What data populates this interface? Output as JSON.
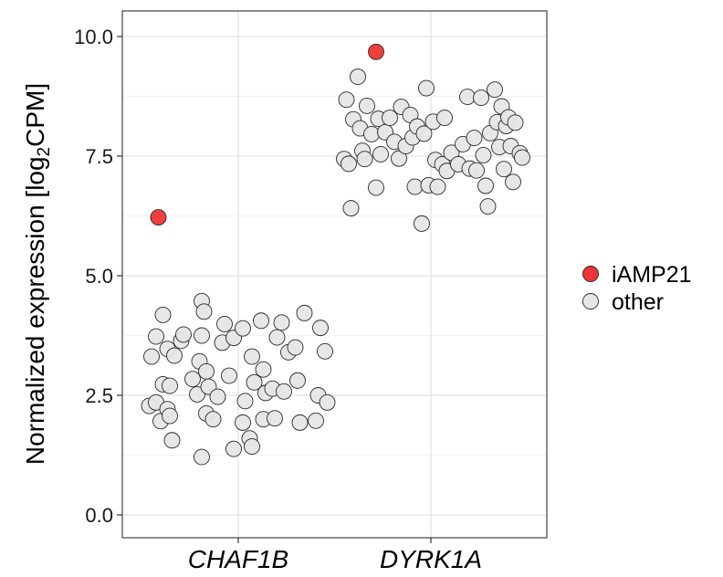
{
  "chart_data": {
    "type": "scatter",
    "style": "jitter",
    "categories": [
      "CHAF1B",
      "DYRK1A"
    ],
    "ylabel": {
      "main": "Normalized expression [log",
      "sub": "2",
      "tail": "CPM]"
    },
    "xlabel": "",
    "ylim": [
      -0.5,
      10.5
    ],
    "yticks": [
      "0.0",
      "2.5",
      "5.0",
      "7.5",
      "10.0"
    ],
    "grid": true,
    "legend_position": "right",
    "series": [
      {
        "name": "iAMP21",
        "color": "#ee3434",
        "points": [
          {
            "category": "CHAF1B",
            "jitter": -0.35,
            "y": 6.22
          },
          {
            "category": "DYRK1A",
            "jitter": -0.24,
            "y": 9.68
          }
        ]
      },
      {
        "name": "other",
        "color": "#e6e6e6",
        "points": [
          {
            "category": "CHAF1B",
            "jitter": -0.39,
            "y": 2.28
          },
          {
            "category": "CHAF1B",
            "jitter": -0.34,
            "y": 1.96
          },
          {
            "category": "CHAF1B",
            "jitter": -0.36,
            "y": 2.35
          },
          {
            "category": "CHAF1B",
            "jitter": -0.33,
            "y": 2.73
          },
          {
            "category": "CHAF1B",
            "jitter": -0.31,
            "y": 2.21
          },
          {
            "category": "CHAF1B",
            "jitter": -0.3,
            "y": 2.07
          },
          {
            "category": "CHAF1B",
            "jitter": -0.29,
            "y": 1.56
          },
          {
            "category": "CHAF1B",
            "jitter": -0.38,
            "y": 3.31
          },
          {
            "category": "CHAF1B",
            "jitter": -0.36,
            "y": 3.73
          },
          {
            "category": "CHAF1B",
            "jitter": -0.33,
            "y": 4.18
          },
          {
            "category": "CHAF1B",
            "jitter": -0.31,
            "y": 3.47
          },
          {
            "category": "CHAF1B",
            "jitter": -0.28,
            "y": 3.33
          },
          {
            "category": "CHAF1B",
            "jitter": -0.25,
            "y": 3.64
          },
          {
            "category": "CHAF1B",
            "jitter": -0.24,
            "y": 3.77
          },
          {
            "category": "CHAF1B",
            "jitter": -0.3,
            "y": 2.7
          },
          {
            "category": "CHAF1B",
            "jitter": -0.2,
            "y": 2.84
          },
          {
            "category": "CHAF1B",
            "jitter": -0.18,
            "y": 2.52
          },
          {
            "category": "CHAF1B",
            "jitter": -0.17,
            "y": 3.21
          },
          {
            "category": "CHAF1B",
            "jitter": -0.16,
            "y": 3.75
          },
          {
            "category": "CHAF1B",
            "jitter": -0.16,
            "y": 4.47
          },
          {
            "category": "CHAF1B",
            "jitter": -0.15,
            "y": 4.25
          },
          {
            "category": "CHAF1B",
            "jitter": -0.14,
            "y": 3.0
          },
          {
            "category": "CHAF1B",
            "jitter": -0.13,
            "y": 2.68
          },
          {
            "category": "CHAF1B",
            "jitter": -0.14,
            "y": 2.12
          },
          {
            "category": "CHAF1B",
            "jitter": -0.11,
            "y": 2.0
          },
          {
            "category": "CHAF1B",
            "jitter": -0.09,
            "y": 2.47
          },
          {
            "category": "CHAF1B",
            "jitter": -0.16,
            "y": 1.21
          },
          {
            "category": "CHAF1B",
            "jitter": -0.06,
            "y": 3.99
          },
          {
            "category": "CHAF1B",
            "jitter": -0.07,
            "y": 3.6
          },
          {
            "category": "CHAF1B",
            "jitter": -0.04,
            "y": 2.91
          },
          {
            "category": "CHAF1B",
            "jitter": -0.02,
            "y": 3.7
          },
          {
            "category": "CHAF1B",
            "jitter": -0.02,
            "y": 1.38
          },
          {
            "category": "CHAF1B",
            "jitter": 0.02,
            "y": 1.93
          },
          {
            "category": "CHAF1B",
            "jitter": 0.03,
            "y": 2.38
          },
          {
            "category": "CHAF1B",
            "jitter": 0.02,
            "y": 3.9
          },
          {
            "category": "CHAF1B",
            "jitter": 0.06,
            "y": 3.31
          },
          {
            "category": "CHAF1B",
            "jitter": 0.07,
            "y": 2.77
          },
          {
            "category": "CHAF1B",
            "jitter": 0.05,
            "y": 1.6
          },
          {
            "category": "CHAF1B",
            "jitter": 0.06,
            "y": 1.43
          },
          {
            "category": "CHAF1B",
            "jitter": 0.1,
            "y": 4.06
          },
          {
            "category": "CHAF1B",
            "jitter": 0.11,
            "y": 3.04
          },
          {
            "category": "CHAF1B",
            "jitter": 0.12,
            "y": 2.55
          },
          {
            "category": "CHAF1B",
            "jitter": 0.11,
            "y": 2.0
          },
          {
            "category": "CHAF1B",
            "jitter": 0.16,
            "y": 2.02
          },
          {
            "category": "CHAF1B",
            "jitter": 0.15,
            "y": 2.64
          },
          {
            "category": "CHAF1B",
            "jitter": 0.17,
            "y": 3.71
          },
          {
            "category": "CHAF1B",
            "jitter": 0.19,
            "y": 4.02
          },
          {
            "category": "CHAF1B",
            "jitter": 0.2,
            "y": 2.58
          },
          {
            "category": "CHAF1B",
            "jitter": 0.22,
            "y": 3.4
          },
          {
            "category": "CHAF1B",
            "jitter": 0.25,
            "y": 3.5
          },
          {
            "category": "CHAF1B",
            "jitter": 0.26,
            "y": 2.81
          },
          {
            "category": "CHAF1B",
            "jitter": 0.27,
            "y": 1.93
          },
          {
            "category": "CHAF1B",
            "jitter": 0.29,
            "y": 4.22
          },
          {
            "category": "CHAF1B",
            "jitter": 0.34,
            "y": 1.97
          },
          {
            "category": "CHAF1B",
            "jitter": 0.35,
            "y": 2.5
          },
          {
            "category": "CHAF1B",
            "jitter": 0.36,
            "y": 3.91
          },
          {
            "category": "CHAF1B",
            "jitter": 0.38,
            "y": 3.42
          },
          {
            "category": "CHAF1B",
            "jitter": 0.39,
            "y": 2.35
          },
          {
            "category": "DYRK1A",
            "jitter": -0.38,
            "y": 7.44
          },
          {
            "category": "DYRK1A",
            "jitter": -0.37,
            "y": 8.68
          },
          {
            "category": "DYRK1A",
            "jitter": -0.36,
            "y": 7.34
          },
          {
            "category": "DYRK1A",
            "jitter": -0.35,
            "y": 6.41
          },
          {
            "category": "DYRK1A",
            "jitter": -0.34,
            "y": 8.27
          },
          {
            "category": "DYRK1A",
            "jitter": -0.32,
            "y": 9.16
          },
          {
            "category": "DYRK1A",
            "jitter": -0.31,
            "y": 8.08
          },
          {
            "category": "DYRK1A",
            "jitter": -0.3,
            "y": 7.61
          },
          {
            "category": "DYRK1A",
            "jitter": -0.29,
            "y": 7.44
          },
          {
            "category": "DYRK1A",
            "jitter": -0.28,
            "y": 8.55
          },
          {
            "category": "DYRK1A",
            "jitter": -0.26,
            "y": 7.96
          },
          {
            "category": "DYRK1A",
            "jitter": -0.24,
            "y": 6.84
          },
          {
            "category": "DYRK1A",
            "jitter": -0.23,
            "y": 8.28
          },
          {
            "category": "DYRK1A",
            "jitter": -0.22,
            "y": 7.54
          },
          {
            "category": "DYRK1A",
            "jitter": -0.2,
            "y": 8.0
          },
          {
            "category": "DYRK1A",
            "jitter": -0.18,
            "y": 8.3
          },
          {
            "category": "DYRK1A",
            "jitter": -0.16,
            "y": 7.8
          },
          {
            "category": "DYRK1A",
            "jitter": -0.14,
            "y": 7.45
          },
          {
            "category": "DYRK1A",
            "jitter": -0.13,
            "y": 8.53
          },
          {
            "category": "DYRK1A",
            "jitter": -0.11,
            "y": 7.71
          },
          {
            "category": "DYRK1A",
            "jitter": -0.09,
            "y": 8.36
          },
          {
            "category": "DYRK1A",
            "jitter": -0.08,
            "y": 7.89
          },
          {
            "category": "DYRK1A",
            "jitter": -0.07,
            "y": 6.86
          },
          {
            "category": "DYRK1A",
            "jitter": -0.06,
            "y": 8.12
          },
          {
            "category": "DYRK1A",
            "jitter": -0.04,
            "y": 6.09
          },
          {
            "category": "DYRK1A",
            "jitter": -0.03,
            "y": 7.97
          },
          {
            "category": "DYRK1A",
            "jitter": -0.02,
            "y": 8.92
          },
          {
            "category": "DYRK1A",
            "jitter": -0.01,
            "y": 6.89
          },
          {
            "category": "DYRK1A",
            "jitter": 0.01,
            "y": 8.22
          },
          {
            "category": "DYRK1A",
            "jitter": 0.02,
            "y": 7.42
          },
          {
            "category": "DYRK1A",
            "jitter": 0.03,
            "y": 6.86
          },
          {
            "category": "DYRK1A",
            "jitter": 0.05,
            "y": 7.33
          },
          {
            "category": "DYRK1A",
            "jitter": 0.06,
            "y": 8.3
          },
          {
            "category": "DYRK1A",
            "jitter": 0.07,
            "y": 7.19
          },
          {
            "category": "DYRK1A",
            "jitter": 0.09,
            "y": 7.57
          },
          {
            "category": "DYRK1A",
            "jitter": 0.12,
            "y": 7.33
          },
          {
            "category": "DYRK1A",
            "jitter": 0.14,
            "y": 7.75
          },
          {
            "category": "DYRK1A",
            "jitter": 0.16,
            "y": 8.74
          },
          {
            "category": "DYRK1A",
            "jitter": 0.17,
            "y": 7.24
          },
          {
            "category": "DYRK1A",
            "jitter": 0.19,
            "y": 7.88
          },
          {
            "category": "DYRK1A",
            "jitter": 0.2,
            "y": 7.2
          },
          {
            "category": "DYRK1A",
            "jitter": 0.22,
            "y": 8.72
          },
          {
            "category": "DYRK1A",
            "jitter": 0.23,
            "y": 7.52
          },
          {
            "category": "DYRK1A",
            "jitter": 0.24,
            "y": 6.88
          },
          {
            "category": "DYRK1A",
            "jitter": 0.25,
            "y": 6.45
          },
          {
            "category": "DYRK1A",
            "jitter": 0.26,
            "y": 7.98
          },
          {
            "category": "DYRK1A",
            "jitter": 0.28,
            "y": 8.89
          },
          {
            "category": "DYRK1A",
            "jitter": 0.29,
            "y": 8.21
          },
          {
            "category": "DYRK1A",
            "jitter": 0.3,
            "y": 7.69
          },
          {
            "category": "DYRK1A",
            "jitter": 0.31,
            "y": 8.54
          },
          {
            "category": "DYRK1A",
            "jitter": 0.32,
            "y": 7.23
          },
          {
            "category": "DYRK1A",
            "jitter": 0.33,
            "y": 8.13
          },
          {
            "category": "DYRK1A",
            "jitter": 0.34,
            "y": 8.31
          },
          {
            "category": "DYRK1A",
            "jitter": 0.35,
            "y": 7.71
          },
          {
            "category": "DYRK1A",
            "jitter": 0.36,
            "y": 6.96
          },
          {
            "category": "DYRK1A",
            "jitter": 0.37,
            "y": 8.2
          },
          {
            "category": "DYRK1A",
            "jitter": 0.39,
            "y": 7.56
          },
          {
            "category": "DYRK1A",
            "jitter": 0.4,
            "y": 7.47
          }
        ]
      }
    ]
  }
}
